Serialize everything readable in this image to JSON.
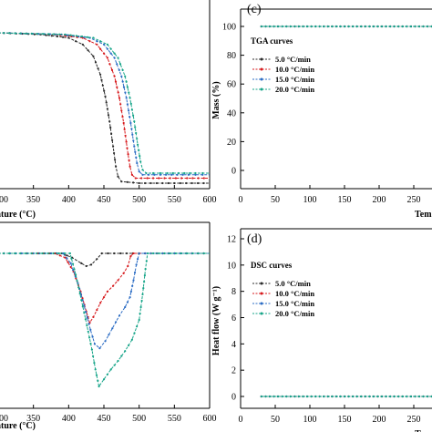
{
  "chart_data": [
    {
      "id": "tga_left",
      "type": "line",
      "xlabel": "ature (°C)",
      "xlim": [
        300,
        600
      ],
      "ylim": [
        0,
        100
      ],
      "x_ticks": [
        "00",
        "350",
        "400",
        "450",
        "500",
        "550",
        "600"
      ],
      "series": [
        {
          "name": "5.0 °C/min",
          "color": "#2b2b2b",
          "points": [
            [
              300,
              96
            ],
            [
              360,
              95
            ],
            [
              400,
              93
            ],
            [
              420,
              89
            ],
            [
              435,
              82
            ],
            [
              445,
              71
            ],
            [
              452,
              58
            ],
            [
              458,
              43
            ],
            [
              463,
              28
            ],
            [
              467,
              16
            ],
            [
              470,
              10
            ],
            [
              475,
              7
            ],
            [
              500,
              6
            ],
            [
              550,
              6
            ],
            [
              600,
              6
            ]
          ]
        },
        {
          "name": "10.0 °C/min",
          "color": "#d7191c",
          "points": [
            [
              300,
              96
            ],
            [
              380,
              95
            ],
            [
              420,
              93
            ],
            [
              440,
              89
            ],
            [
              455,
              81
            ],
            [
              465,
              70
            ],
            [
              472,
              57
            ],
            [
              478,
              42
            ],
            [
              483,
              27
            ],
            [
              487,
              16
            ],
            [
              490,
              11
            ],
            [
              495,
              9
            ],
            [
              520,
              9
            ],
            [
              560,
              9
            ],
            [
              600,
              9
            ]
          ]
        },
        {
          "name": "15.0 °C/min",
          "color": "#2b6cc4",
          "points": [
            [
              300,
              96
            ],
            [
              390,
              95
            ],
            [
              430,
              93
            ],
            [
              450,
              89
            ],
            [
              465,
              81
            ],
            [
              475,
              70
            ],
            [
              482,
              57
            ],
            [
              488,
              42
            ],
            [
              493,
              28
            ],
            [
              497,
              18
            ],
            [
              500,
              13
            ],
            [
              505,
              11
            ],
            [
              530,
              11
            ],
            [
              570,
              11
            ],
            [
              600,
              11
            ]
          ]
        },
        {
          "name": "20.0 °C/min",
          "color": "#17a589",
          "points": [
            [
              300,
              96
            ],
            [
              395,
              95
            ],
            [
              435,
              93
            ],
            [
              455,
              89
            ],
            [
              470,
              81
            ],
            [
              480,
              70
            ],
            [
              487,
              57
            ],
            [
              493,
              43
            ],
            [
              498,
              29
            ],
            [
              502,
              19
            ],
            [
              505,
              14
            ],
            [
              510,
              12
            ],
            [
              540,
              12
            ],
            [
              580,
              12
            ],
            [
              600,
              12
            ]
          ]
        }
      ]
    },
    {
      "id": "tga_right",
      "panel_label": "(c)",
      "type": "line",
      "legend_title": "TGA curves",
      "ylabel": "Mass (%)",
      "xlabel": "Tem",
      "xlim": [
        0,
        300
      ],
      "ylim": [
        -10,
        105
      ],
      "x_ticks": [
        "0",
        "50",
        "100",
        "150",
        "200",
        "250"
      ],
      "y_ticks": [
        "0",
        "20",
        "40",
        "60",
        "80",
        "100"
      ],
      "series": [
        {
          "name": "5.0 °C/min",
          "color": "#2b2b2b",
          "points": [
            [
              30,
              100
            ],
            [
              300,
              100
            ]
          ]
        },
        {
          "name": "10.0 °C/min",
          "color": "#d7191c",
          "points": [
            [
              30,
              100
            ],
            [
              300,
              100
            ]
          ]
        },
        {
          "name": "15.0 °C/min",
          "color": "#2b6cc4",
          "points": [
            [
              30,
              100
            ],
            [
              300,
              100
            ]
          ]
        },
        {
          "name": "20.0 °C/min",
          "color": "#17a589",
          "points": [
            [
              30,
              100
            ],
            [
              300,
              100
            ]
          ]
        }
      ]
    },
    {
      "id": "dsc_left",
      "type": "line",
      "xlabel": "ature (°C)",
      "xlim": [
        300,
        600
      ],
      "ylim": [
        0,
        10
      ],
      "x_ticks": [
        "00",
        "350",
        "400",
        "450",
        "500",
        "550",
        "600"
      ],
      "series": [
        {
          "name": "5.0 °C/min",
          "color": "#2b2b2b",
          "points": [
            [
              300,
              10.5
            ],
            [
              390,
              10.5
            ],
            [
              405,
              10.2
            ],
            [
              418,
              9.8
            ],
            [
              425,
              9.6
            ],
            [
              432,
              9.7
            ],
            [
              440,
              10.1
            ],
            [
              447,
              10.5
            ],
            [
              500,
              10.5
            ],
            [
              600,
              10.5
            ]
          ]
        },
        {
          "name": "10.0 °C/min",
          "color": "#d7191c",
          "points": [
            [
              300,
              10.5
            ],
            [
              380,
              10.5
            ],
            [
              395,
              10.2
            ],
            [
              407,
              9.2
            ],
            [
              417,
              7.8
            ],
            [
              425,
              6.4
            ],
            [
              430,
              5.6
            ],
            [
              435,
              6.0
            ],
            [
              445,
              7.0
            ],
            [
              455,
              7.8
            ],
            [
              463,
              8.2
            ],
            [
              470,
              8.6
            ],
            [
              478,
              9.1
            ],
            [
              484,
              9.6
            ],
            [
              488,
              10.3
            ],
            [
              492,
              10.5
            ],
            [
              600,
              10.5
            ]
          ]
        },
        {
          "name": "15.0 °C/min",
          "color": "#2b6cc4",
          "points": [
            [
              300,
              10.5
            ],
            [
              392,
              10.5
            ],
            [
              403,
              9.8
            ],
            [
              413,
              8.4
            ],
            [
              422,
              6.8
            ],
            [
              431,
              5.1
            ],
            [
              437,
              4.1
            ],
            [
              444,
              3.8
            ],
            [
              452,
              4.3
            ],
            [
              462,
              5.2
            ],
            [
              472,
              6.1
            ],
            [
              480,
              6.7
            ],
            [
              487,
              7.4
            ],
            [
              492,
              8.6
            ],
            [
              496,
              9.7
            ],
            [
              500,
              10.5
            ],
            [
              600,
              10.5
            ]
          ]
        },
        {
          "name": "20.0 °C/min",
          "color": "#17a589",
          "points": [
            [
              300,
              10.5
            ],
            [
              402,
              10.5
            ],
            [
              410,
              9.0
            ],
            [
              418,
              7.2
            ],
            [
              426,
              5.4
            ],
            [
              433,
              3.7
            ],
            [
              438,
              2.3
            ],
            [
              443,
              1.1
            ],
            [
              450,
              1.6
            ],
            [
              460,
              2.3
            ],
            [
              470,
              2.9
            ],
            [
              480,
              3.6
            ],
            [
              490,
              4.4
            ],
            [
              500,
              5.8
            ],
            [
              505,
              7.6
            ],
            [
              509,
              9.4
            ],
            [
              512,
              10.5
            ],
            [
              600,
              10.5
            ]
          ]
        }
      ]
    },
    {
      "id": "dsc_right",
      "panel_label": "(d)",
      "type": "line",
      "legend_title": "DSC curves",
      "ylabel": "Heat flow (W g⁻¹)",
      "xlabel": "Tem",
      "xlim": [
        0,
        300
      ],
      "ylim": [
        -0.6,
        12
      ],
      "x_ticks": [
        "0",
        "50",
        "100",
        "150",
        "200",
        "250"
      ],
      "y_ticks": [
        "0",
        "2",
        "4",
        "6",
        "8",
        "10",
        "12"
      ],
      "series": [
        {
          "name": "5.0 °C/min",
          "color": "#2b2b2b",
          "points": [
            [
              30,
              0
            ],
            [
              300,
              0
            ]
          ]
        },
        {
          "name": "10.0 °C/min",
          "color": "#d7191c",
          "points": [
            [
              30,
              0
            ],
            [
              300,
              0
            ]
          ]
        },
        {
          "name": "15.0 °C/min",
          "color": "#2b6cc4",
          "points": [
            [
              30,
              0
            ],
            [
              300,
              0
            ]
          ]
        },
        {
          "name": "20.0 °C/min",
          "color": "#17a589",
          "points": [
            [
              30,
              0
            ],
            [
              300,
              0
            ]
          ]
        }
      ]
    }
  ]
}
